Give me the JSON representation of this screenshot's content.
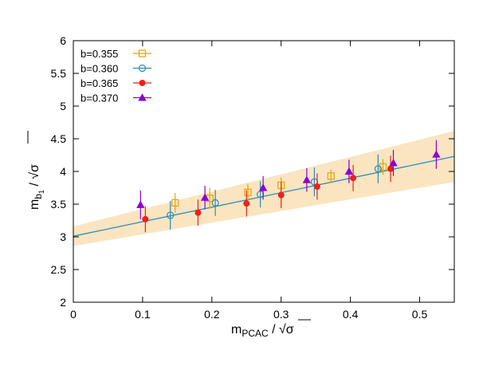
{
  "chart_data": {
    "type": "scatter",
    "xlabel": {
      "main": "m",
      "sub": "PCAC",
      "sep": " / ",
      "sqrt": "√",
      "sym": "σ"
    },
    "ylabel": {
      "main": "m",
      "sub": "b",
      "subsub": "1",
      "sep": " / ",
      "sqrt": "√",
      "sym": "σ"
    },
    "xlim": [
      0,
      0.55
    ],
    "ylim": [
      2,
      6
    ],
    "xticks": [
      "0",
      "0.1",
      "0.2",
      "0.3",
      "0.4",
      "0.5"
    ],
    "yticks": [
      "2",
      "2.5",
      "3",
      "3.5",
      "4",
      "4.5",
      "5",
      "5.5",
      "6"
    ],
    "grid": false,
    "legend_position": "top-left",
    "fit": {
      "color": "#2b8cbe",
      "band_color": "#fbe5c0",
      "line": [
        [
          0,
          3.01
        ],
        [
          0.55,
          4.23
        ]
      ],
      "band_upper": [
        [
          0,
          3.16
        ],
        [
          0.55,
          4.62
        ]
      ],
      "band_lower": [
        [
          0,
          2.86
        ],
        [
          0.55,
          3.84
        ]
      ]
    },
    "series": [
      {
        "name": "b=0.355",
        "marker": "open-square",
        "color": "#e6a400",
        "points": [
          {
            "x": 0.147,
            "y": 3.52,
            "err": 0.15
          },
          {
            "x": 0.197,
            "y": 3.59,
            "err": 0.16
          },
          {
            "x": 0.252,
            "y": 3.68,
            "err": 0.13
          },
          {
            "x": 0.3,
            "y": 3.79,
            "err": 0.12
          },
          {
            "x": 0.372,
            "y": 3.93,
            "err": 0.1
          },
          {
            "x": 0.447,
            "y": 4.07,
            "err": 0.12
          }
        ]
      },
      {
        "name": "b=0.360",
        "marker": "open-circle",
        "color": "#2b8cbe",
        "points": [
          {
            "x": 0.14,
            "y": 3.33,
            "err": 0.22
          },
          {
            "x": 0.205,
            "y": 3.52,
            "err": 0.2
          },
          {
            "x": 0.27,
            "y": 3.65,
            "err": 0.2
          },
          {
            "x": 0.348,
            "y": 3.84,
            "err": 0.22
          },
          {
            "x": 0.44,
            "y": 4.04,
            "err": 0.22
          }
        ]
      },
      {
        "name": "b=0.365",
        "marker": "filled-circle",
        "color": "#e8231b",
        "points": [
          {
            "x": 0.104,
            "y": 3.27,
            "err": 0.2
          },
          {
            "x": 0.18,
            "y": 3.37,
            "err": 0.2
          },
          {
            "x": 0.25,
            "y": 3.51,
            "err": 0.2
          },
          {
            "x": 0.3,
            "y": 3.64,
            "err": 0.2
          },
          {
            "x": 0.352,
            "y": 3.77,
            "err": 0.2
          },
          {
            "x": 0.404,
            "y": 3.9,
            "err": 0.2
          },
          {
            "x": 0.458,
            "y": 4.04,
            "err": 0.2
          }
        ]
      },
      {
        "name": "b=0.370",
        "marker": "filled-triangle",
        "color": "#8b00d4",
        "points": [
          {
            "x": 0.097,
            "y": 3.49,
            "err": 0.22
          },
          {
            "x": 0.19,
            "y": 3.6,
            "err": 0.18
          },
          {
            "x": 0.274,
            "y": 3.75,
            "err": 0.18
          },
          {
            "x": 0.337,
            "y": 3.87,
            "err": 0.18
          },
          {
            "x": 0.398,
            "y": 4.0,
            "err": 0.18
          },
          {
            "x": 0.462,
            "y": 4.13,
            "err": 0.2
          },
          {
            "x": 0.524,
            "y": 4.26,
            "err": 0.22
          }
        ]
      }
    ]
  }
}
